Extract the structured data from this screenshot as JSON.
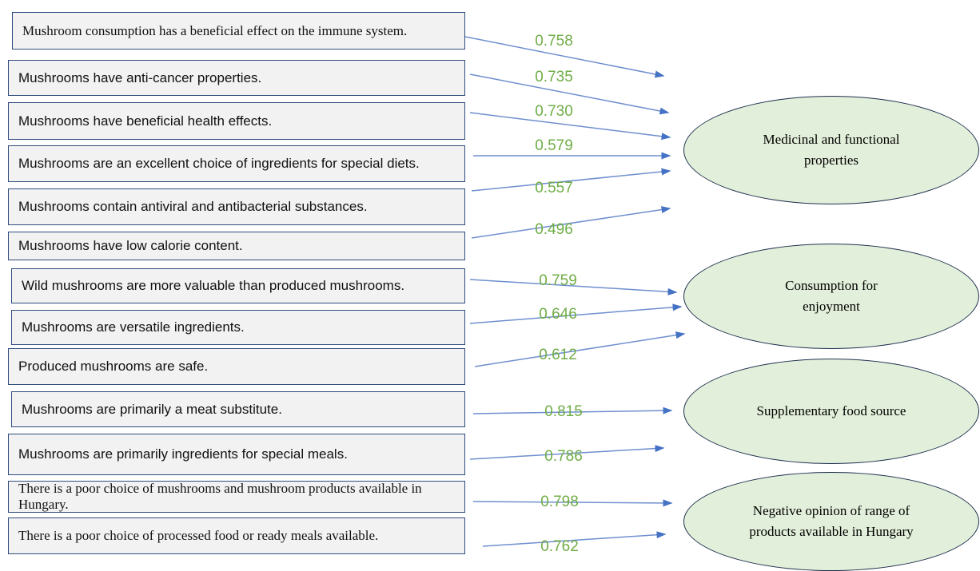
{
  "items": [
    {
      "text": "Mushroom consumption has a beneficial effect on the immune system.",
      "loading": "0.758"
    },
    {
      "text": "Mushrooms have anti-cancer properties.",
      "loading": "0.735"
    },
    {
      "text": "Mushrooms have beneficial health effects.",
      "loading": "0.730"
    },
    {
      "text": "Mushrooms are an excellent choice of ingredients for special diets.",
      "loading": "0.579"
    },
    {
      "text": "Mushrooms contain antiviral and antibacterial substances.",
      "loading": "0.557"
    },
    {
      "text": "Mushrooms have low calorie content.",
      "loading": "0.496"
    },
    {
      "text": "Wild mushrooms are more valuable than produced mushrooms.",
      "loading": "0.759"
    },
    {
      "text": "Mushrooms are versatile ingredients.",
      "loading": "0.646"
    },
    {
      "text": "Produced mushrooms are safe.",
      "loading": "0.612"
    },
    {
      "text": "Mushrooms are primarily a meat substitute.",
      "loading": "0.815"
    },
    {
      "text": "Mushrooms are primarily ingredients for special meals.",
      "loading": "0.786"
    },
    {
      "text": "There is a poor choice of mushrooms and mushroom products available in Hungary.",
      "loading": "0.798"
    },
    {
      "text": "There is a poor choice of processed food or ready meals available.",
      "loading": "0.762"
    }
  ],
  "factors": [
    {
      "label": "Medicinal and functional properties"
    },
    {
      "label": "Consumption for enjoyment"
    },
    {
      "label": "Supplementary food source"
    },
    {
      "label": "Negative opinion of range of products available in Hungary"
    }
  ]
}
